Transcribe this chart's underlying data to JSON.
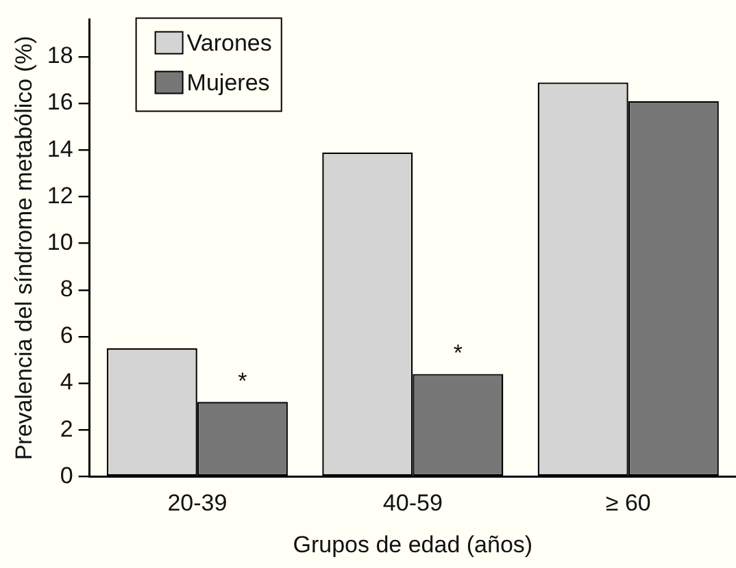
{
  "chart_data": {
    "type": "bar",
    "xlabel": "Grupos de edad (años)",
    "ylabel": "Prevalencia del síndrome metabólico (%)",
    "categories": [
      "20-39",
      "40-59",
      "≥ 60"
    ],
    "series": [
      {
        "name": "Varones",
        "color": "#d4d4d4",
        "values": [
          5.5,
          13.9,
          16.9
        ]
      },
      {
        "name": "Mujeres",
        "color": "#777777",
        "values": [
          3.2,
          4.4,
          16.1
        ]
      }
    ],
    "ylim": [
      0,
      19.6
    ],
    "yticks": [
      0,
      2,
      4,
      6,
      8,
      10,
      12,
      14,
      16,
      18
    ],
    "legend": "top left",
    "annotations": [
      {
        "text": "*",
        "x": "20-39",
        "y": 3.2
      },
      {
        "text": "*",
        "x": "40-59",
        "y": 4.4
      }
    ]
  }
}
